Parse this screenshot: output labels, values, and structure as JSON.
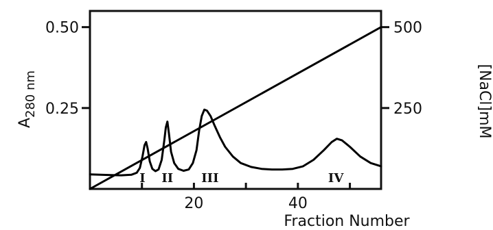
{
  "chart_data": {
    "type": "line",
    "title": "",
    "xlabel": "Fraction Number",
    "ylabel_left": {
      "main": "A",
      "sub": "280 nm"
    },
    "ylabel_right": "[NaCl]mM",
    "xlim": [
      0,
      56
    ],
    "ylim_left": [
      0,
      0.55
    ],
    "ylim_right": [
      0,
      550
    ],
    "x_ticks": [
      10,
      20,
      30,
      40,
      50
    ],
    "x_tick_labels": [
      {
        "x": 20,
        "label": "20"
      },
      {
        "x": 40,
        "label": "40"
      }
    ],
    "y_left_ticks": [
      {
        "value": 0.25,
        "label": "0.25"
      },
      {
        "value": 0.5,
        "label": "0.50"
      }
    ],
    "y_right_ticks": [
      {
        "value": 250,
        "label": "250"
      },
      {
        "value": 500,
        "label": "500"
      }
    ],
    "grid": false,
    "series": [
      {
        "axis": "left",
        "color": "#000000",
        "points": [
          [
            0.0,
            0.045
          ],
          [
            2.0,
            0.044
          ],
          [
            4.0,
            0.043
          ],
          [
            6.0,
            0.042
          ],
          [
            8.0,
            0.044
          ],
          [
            9.0,
            0.05
          ],
          [
            9.6,
            0.065
          ],
          [
            10.1,
            0.1
          ],
          [
            10.5,
            0.135
          ],
          [
            10.8,
            0.145
          ],
          [
            11.1,
            0.125
          ],
          [
            11.5,
            0.085
          ],
          [
            12.0,
            0.062
          ],
          [
            12.6,
            0.055
          ],
          [
            13.2,
            0.06
          ],
          [
            13.8,
            0.09
          ],
          [
            14.3,
            0.15
          ],
          [
            14.6,
            0.19
          ],
          [
            14.9,
            0.208
          ],
          [
            15.2,
            0.17
          ],
          [
            15.6,
            0.115
          ],
          [
            16.2,
            0.08
          ],
          [
            17.0,
            0.062
          ],
          [
            18.0,
            0.056
          ],
          [
            19.0,
            0.06
          ],
          [
            19.8,
            0.08
          ],
          [
            20.5,
            0.12
          ],
          [
            21.0,
            0.18
          ],
          [
            21.5,
            0.225
          ],
          [
            22.0,
            0.245
          ],
          [
            22.5,
            0.242
          ],
          [
            23.2,
            0.225
          ],
          [
            24.0,
            0.195
          ],
          [
            25.0,
            0.16
          ],
          [
            26.0,
            0.13
          ],
          [
            27.5,
            0.1
          ],
          [
            29.0,
            0.08
          ],
          [
            31.0,
            0.068
          ],
          [
            33.0,
            0.062
          ],
          [
            35.0,
            0.06
          ],
          [
            37.0,
            0.06
          ],
          [
            39.0,
            0.062
          ],
          [
            41.0,
            0.07
          ],
          [
            43.0,
            0.09
          ],
          [
            45.0,
            0.12
          ],
          [
            46.5,
            0.145
          ],
          [
            47.5,
            0.155
          ],
          [
            48.5,
            0.15
          ],
          [
            50.0,
            0.13
          ],
          [
            52.0,
            0.1
          ],
          [
            54.0,
            0.08
          ],
          [
            56.0,
            0.07
          ]
        ]
      },
      {
        "axis": "right",
        "color": "#000000",
        "points": [
          [
            0,
            0
          ],
          [
            56,
            500
          ]
        ]
      }
    ],
    "annotations": [
      {
        "x": 10.1,
        "label": "I"
      },
      {
        "x": 14.9,
        "label": "II"
      },
      {
        "x": 23.1,
        "label": "III"
      },
      {
        "x": 47.3,
        "label": "IV"
      }
    ]
  }
}
